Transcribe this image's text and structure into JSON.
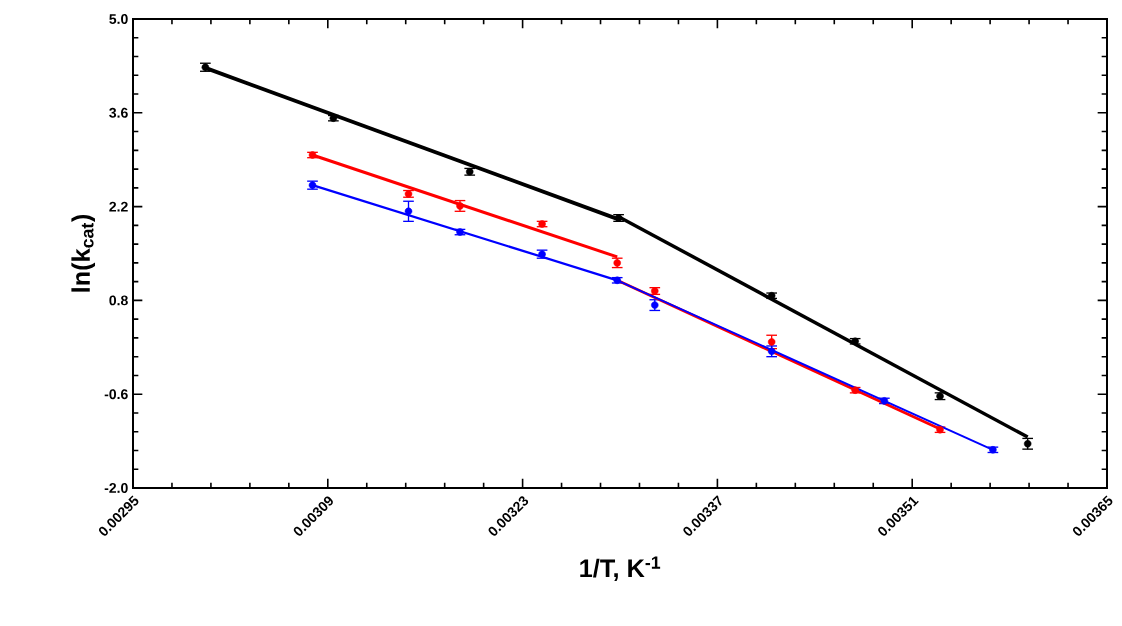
{
  "chart_data": {
    "type": "scatter",
    "xlabel": "1/T, K$^{-1}$",
    "ylabel": "ln(k$_{cat}$)",
    "xlim": [
      0.00295,
      0.00365
    ],
    "xticks": [
      0.00295,
      0.00309,
      0.00323,
      0.00337,
      0.00351,
      0.00365
    ],
    "ylim": [
      -2,
      5
    ],
    "yticks": [
      {
        "value": -2,
        "label": "-2.0"
      },
      -0.6,
      0.8,
      2.2,
      3.6,
      {
        "value": 5,
        "label": "5.0"
      }
    ],
    "grid": false,
    "series": [
      {
        "marker": "circle",
        "color": "#000000",
        "x": [
          0.003002,
          0.003094,
          0.003192,
          0.003299,
          0.003409,
          0.003469,
          0.00353,
          0.003593
        ],
        "values": [
          4.28,
          3.52,
          2.72,
          2.03,
          0.87,
          0.19,
          -0.63,
          -1.34
        ],
        "errors": [
          0.06,
          0.04,
          0.05,
          0.05,
          0.04,
          0.04,
          0.05,
          0.08
        ]
      },
      {
        "marker": "circle",
        "color": "#ff0000",
        "x": [
          0.003079,
          0.003148,
          0.003185,
          0.003244,
          0.003298,
          0.003325,
          0.003409,
          0.003469,
          0.00353
        ],
        "values": [
          2.97,
          2.39,
          2.21,
          1.94,
          1.36,
          0.94,
          0.18,
          -0.54,
          -1.13
        ],
        "errors": [
          0.04,
          0.05,
          0.08,
          0.04,
          0.07,
          0.05,
          0.1,
          0.04,
          0.04
        ]
      },
      {
        "marker": "circle",
        "color": "#0000ff",
        "x": [
          0.003079,
          0.003148,
          0.003185,
          0.003244,
          0.003298,
          0.003325,
          0.003409,
          0.00349,
          0.003568
        ],
        "values": [
          2.52,
          2.13,
          1.82,
          1.49,
          1.1,
          0.73,
          0.04,
          -0.7,
          -1.43
        ],
        "errors": [
          0.06,
          0.15,
          0.04,
          0.06,
          0.04,
          0.08,
          0.08,
          0.04,
          0.04
        ]
      },
      {
        "type": "line",
        "color": "#000000",
        "x": [
          0.003002,
          0.003299
        ],
        "values": [
          4.27,
          2.01
        ]
      },
      {
        "type": "line",
        "color": "#000000",
        "x": [
          0.003299,
          0.003593
        ],
        "values": [
          2.05,
          -1.24
        ]
      },
      {
        "type": "line",
        "color": "#ff0000",
        "x": [
          0.003079,
          0.003298
        ],
        "values": [
          2.97,
          1.45
        ]
      },
      {
        "type": "line",
        "color": "#ff0000",
        "x": [
          0.003298,
          0.00353
        ],
        "values": [
          1.1,
          -1.12
        ]
      },
      {
        "type": "line",
        "color": "#0000ff",
        "x": [
          0.003079,
          0.003298
        ],
        "values": [
          2.52,
          1.1
        ]
      },
      {
        "type": "line",
        "color": "#0000ff",
        "x": [
          0.003298,
          0.003568
        ],
        "values": [
          1.1,
          -1.43
        ]
      }
    ]
  }
}
